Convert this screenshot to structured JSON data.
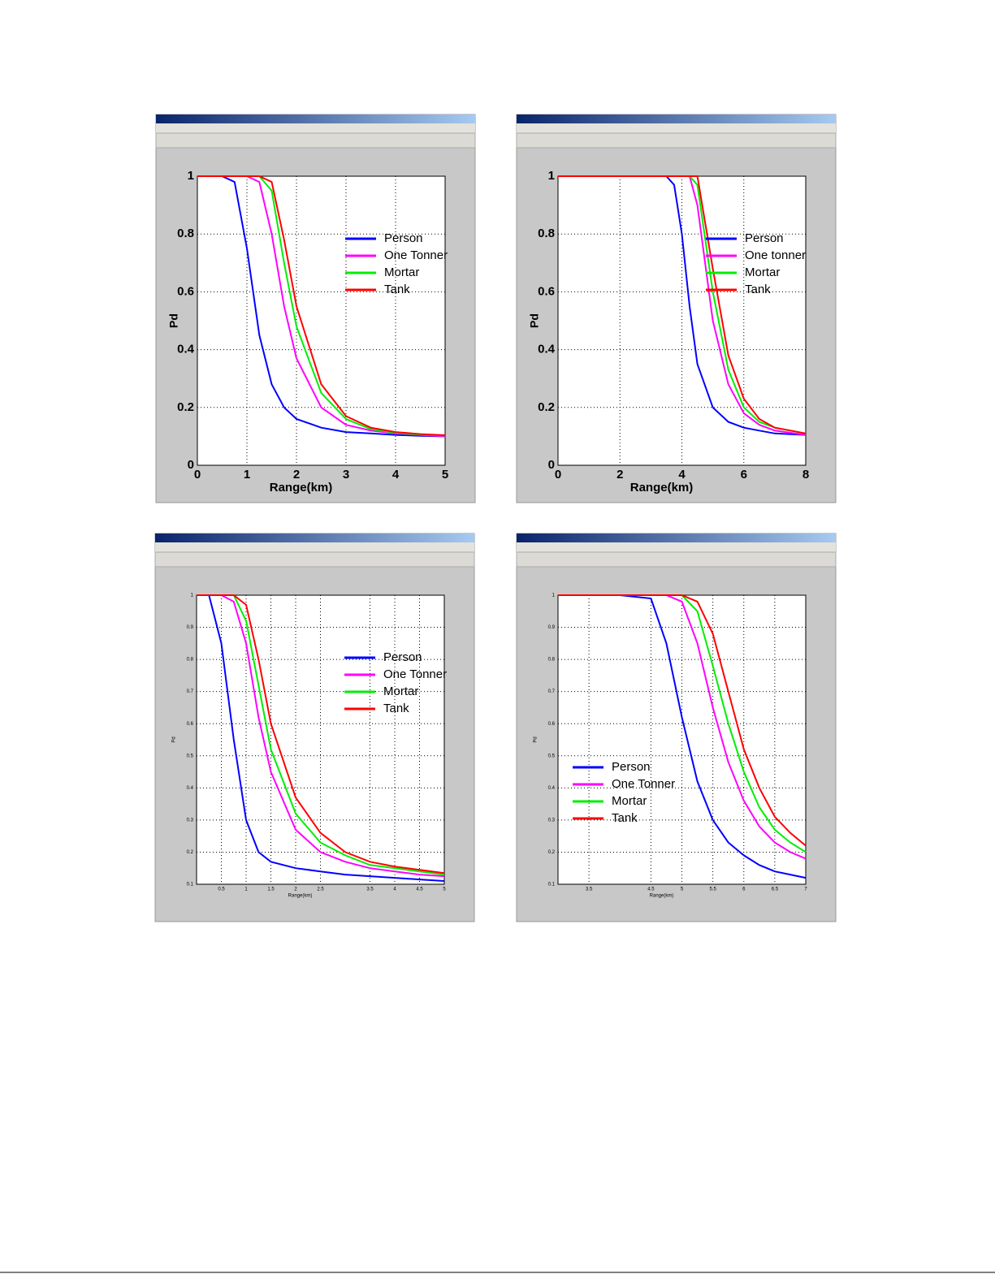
{
  "chart_data": [
    {
      "type": "line",
      "x_label": "Range(km)",
      "y_label": "Pd",
      "legend": "right",
      "grid": true,
      "xlim": [
        0,
        5
      ],
      "xticks": [
        0,
        1,
        2,
        3,
        4,
        5
      ],
      "ylim": [
        0,
        1
      ],
      "yticks": [
        0,
        0.2,
        0.4,
        0.6,
        0.8,
        1
      ],
      "x": [
        0,
        0.5,
        0.75,
        1,
        1.25,
        1.5,
        1.75,
        2,
        2.5,
        3,
        3.5,
        4,
        4.5,
        5
      ],
      "series": [
        {
          "name": "Person",
          "color": "#0000ff",
          "values": [
            1,
            1,
            0.98,
            0.75,
            0.45,
            0.28,
            0.2,
            0.16,
            0.13,
            0.115,
            0.11,
            0.105,
            0.102,
            0.1
          ]
        },
        {
          "name": "One Tonner",
          "color": "#ff00ff",
          "values": [
            1,
            1,
            1,
            1,
            0.98,
            0.8,
            0.55,
            0.37,
            0.2,
            0.14,
            0.12,
            0.11,
            0.105,
            0.1
          ]
        },
        {
          "name": "Mortar",
          "color": "#00ee00",
          "values": [
            1,
            1,
            1,
            1,
            1,
            0.95,
            0.7,
            0.48,
            0.25,
            0.16,
            0.125,
            0.112,
            0.106,
            0.103
          ]
        },
        {
          "name": "Tank",
          "color": "#ff0000",
          "values": [
            1,
            1,
            1,
            1,
            1,
            0.98,
            0.78,
            0.55,
            0.28,
            0.17,
            0.13,
            0.115,
            0.108,
            0.104
          ]
        }
      ]
    },
    {
      "type": "line",
      "x_label": "Range(km)",
      "y_label": "Pd",
      "legend": "right",
      "grid": true,
      "xlim": [
        0,
        8
      ],
      "xticks": [
        0,
        2,
        4,
        6,
        8
      ],
      "ylim": [
        0,
        1
      ],
      "yticks": [
        0,
        0.2,
        0.4,
        0.6,
        0.8,
        1
      ],
      "x": [
        0,
        2,
        3,
        3.5,
        3.75,
        4,
        4.25,
        4.5,
        5,
        5.5,
        6,
        6.5,
        7,
        8
      ],
      "series": [
        {
          "name": "Person",
          "color": "#0000ff",
          "values": [
            1,
            1,
            1,
            1,
            0.97,
            0.8,
            0.55,
            0.35,
            0.2,
            0.15,
            0.13,
            0.12,
            0.11,
            0.105
          ]
        },
        {
          "name": "One tonner",
          "color": "#ff00ff",
          "values": [
            1,
            1,
            1,
            1,
            1,
            1,
            1,
            0.9,
            0.5,
            0.28,
            0.18,
            0.14,
            0.12,
            0.105
          ]
        },
        {
          "name": "Mortar",
          "color": "#00ee00",
          "values": [
            1,
            1,
            1,
            1,
            1,
            1,
            1,
            0.97,
            0.6,
            0.33,
            0.2,
            0.15,
            0.13,
            0.11
          ]
        },
        {
          "name": "Tank",
          "color": "#ff0000",
          "values": [
            1,
            1,
            1,
            1,
            1,
            1,
            1,
            1,
            0.68,
            0.38,
            0.23,
            0.16,
            0.13,
            0.11
          ]
        }
      ]
    },
    {
      "type": "line",
      "x_label": "Range(km)",
      "y_label": "Pd",
      "legend": "right",
      "grid": true,
      "xlim": [
        0,
        5
      ],
      "xticks": [
        0.5,
        1,
        1.5,
        2,
        2.5,
        3.5,
        4,
        4.5,
        5
      ],
      "ylim": [
        0.1,
        1
      ],
      "yticks": [
        0.1,
        0.2,
        0.3,
        0.4,
        0.5,
        0.6,
        0.7,
        0.8,
        0.9,
        1
      ],
      "x": [
        0,
        0.25,
        0.5,
        0.75,
        1,
        1.25,
        1.5,
        2,
        2.5,
        3,
        3.5,
        4,
        4.5,
        5
      ],
      "series": [
        {
          "name": "Person",
          "color": "#0000ff",
          "values": [
            1,
            1,
            0.85,
            0.55,
            0.3,
            0.2,
            0.17,
            0.15,
            0.14,
            0.13,
            0.125,
            0.12,
            0.115,
            0.11
          ]
        },
        {
          "name": "One Tonner",
          "color": "#ff00ff",
          "values": [
            1,
            1,
            1,
            0.98,
            0.85,
            0.62,
            0.45,
            0.27,
            0.2,
            0.17,
            0.15,
            0.14,
            0.13,
            0.125
          ]
        },
        {
          "name": "Mortar",
          "color": "#00ee00",
          "values": [
            1,
            1,
            1,
            1,
            0.92,
            0.72,
            0.52,
            0.32,
            0.23,
            0.19,
            0.16,
            0.15,
            0.14,
            0.13
          ]
        },
        {
          "name": "Tank",
          "color": "#ff0000",
          "values": [
            1,
            1,
            1,
            1,
            0.97,
            0.8,
            0.6,
            0.37,
            0.26,
            0.2,
            0.17,
            0.155,
            0.145,
            0.135
          ]
        }
      ]
    },
    {
      "type": "line",
      "x_label": "Range(km)",
      "y_label": "Pd",
      "legend": "lower left",
      "grid": true,
      "xlim": [
        3,
        7
      ],
      "xticks": [
        3.5,
        4.5,
        5,
        5.5,
        6,
        6.5,
        7
      ],
      "ylim": [
        0.1,
        1
      ],
      "yticks": [
        0.1,
        0.2,
        0.3,
        0.4,
        0.5,
        0.6,
        0.7,
        0.8,
        0.9,
        1
      ],
      "x": [
        3,
        4,
        4.5,
        4.75,
        5,
        5.25,
        5.5,
        5.75,
        6,
        6.25,
        6.5,
        6.75,
        7
      ],
      "series": [
        {
          "name": "Person",
          "color": "#0000ff",
          "values": [
            1,
            1,
            0.99,
            0.85,
            0.62,
            0.42,
            0.3,
            0.23,
            0.19,
            0.16,
            0.14,
            0.13,
            0.12
          ]
        },
        {
          "name": "One Tonner",
          "color": "#ff00ff",
          "values": [
            1,
            1,
            1,
            1,
            0.98,
            0.85,
            0.65,
            0.48,
            0.36,
            0.28,
            0.23,
            0.2,
            0.18
          ]
        },
        {
          "name": "Mortar",
          "color": "#00ee00",
          "values": [
            1,
            1,
            1,
            1,
            1,
            0.95,
            0.78,
            0.6,
            0.45,
            0.34,
            0.27,
            0.23,
            0.2
          ]
        },
        {
          "name": "Tank",
          "color": "#ff0000",
          "values": [
            1,
            1,
            1,
            1,
            1,
            0.98,
            0.88,
            0.7,
            0.52,
            0.4,
            0.31,
            0.26,
            0.22
          ]
        }
      ]
    }
  ]
}
